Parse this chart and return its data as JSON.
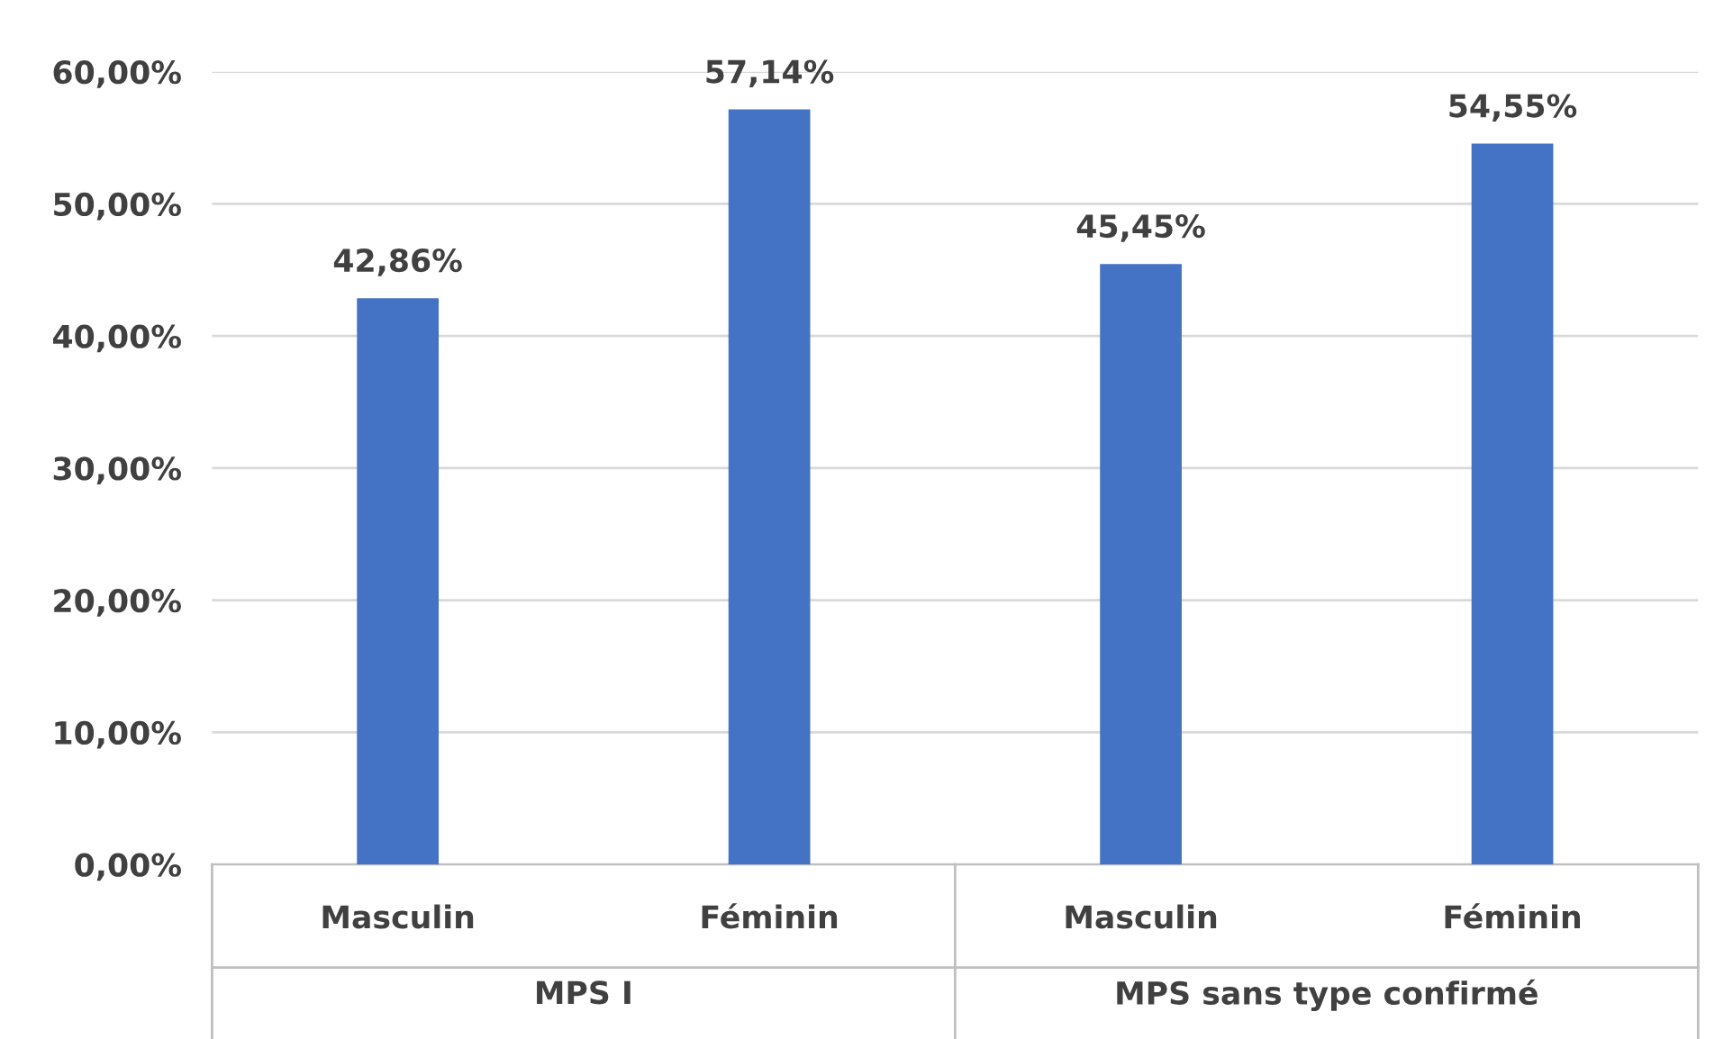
{
  "chart_data": {
    "type": "bar",
    "categories": [
      "Masculin",
      "Féminin",
      "Masculin",
      "Féminin"
    ],
    "values": [
      42.86,
      57.14,
      45.45,
      54.55
    ],
    "value_labels": [
      "42,86%",
      "57,14%",
      "45,45%",
      "54,55%"
    ],
    "color": "#4472c4",
    "ylim": [
      0,
      60
    ],
    "yticks": [
      {
        "value": 0,
        "label": "0,00%"
      },
      {
        "value": 10,
        "label": "10,00%"
      },
      {
        "value": 20,
        "label": "20,00%"
      },
      {
        "value": 30,
        "label": "30,00%"
      },
      {
        "value": 40,
        "label": "40,00%"
      },
      {
        "value": 50,
        "label": "50,00%"
      },
      {
        "value": 60,
        "label": "60,00%"
      }
    ],
    "grid": "y",
    "annotations": [
      "MPS I",
      "MPS sans type confirmé"
    ]
  }
}
